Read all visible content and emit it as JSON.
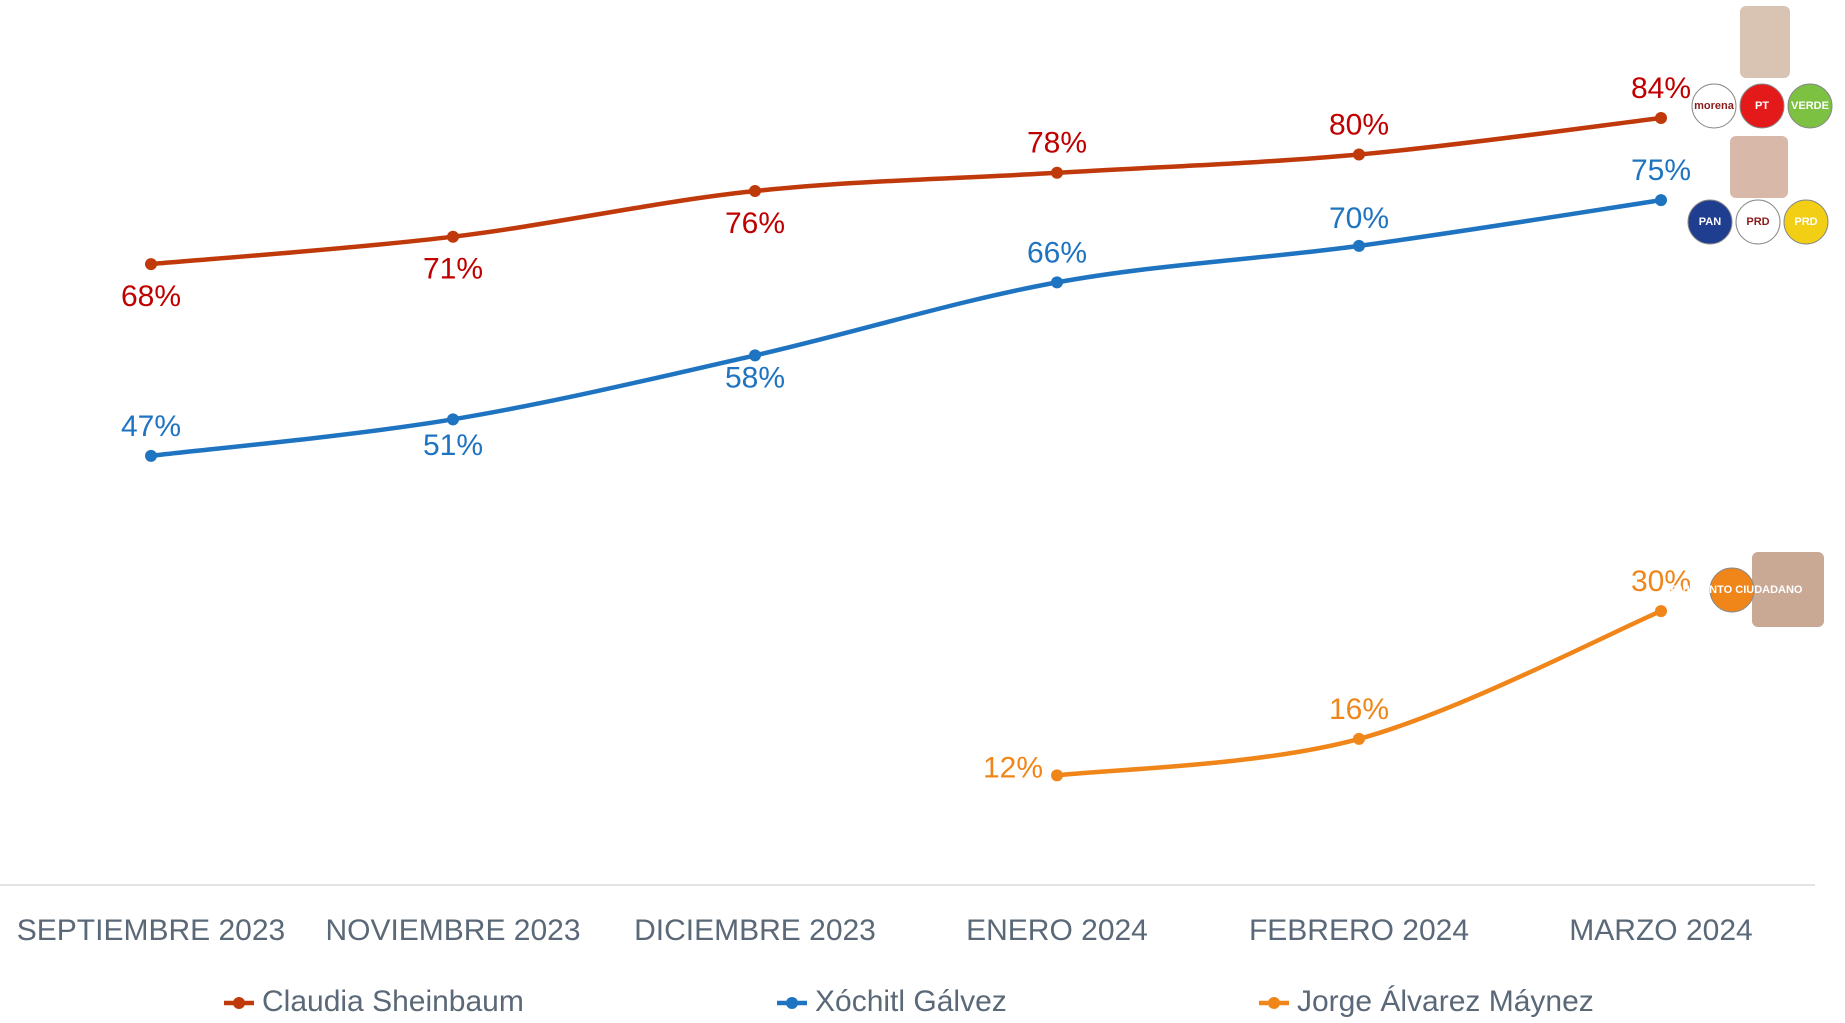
{
  "chart_data": {
    "type": "line",
    "categories": [
      "SEPTIEMBRE 2023",
      "NOVIEMBRE 2023",
      "DICIEMBRE 2023",
      "ENERO 2024",
      "FEBRERO 2024",
      "MARZO 2024"
    ],
    "series": [
      {
        "name": "Claudia Sheinbaum",
        "color": "#c0390b",
        "values": [
          68,
          71,
          76,
          78,
          80,
          84
        ],
        "value_labels": [
          "68%",
          "71%",
          "76%",
          "78%",
          "80%",
          "84%"
        ],
        "logos": [
          "morena",
          "PT",
          "VERDE"
        ]
      },
      {
        "name": "Xóchitl Gálvez",
        "color": "#1f74c1",
        "values": [
          47,
          51,
          58,
          66,
          70,
          75
        ],
        "value_labels": [
          "47%",
          "51%",
          "58%",
          "66%",
          "70%",
          "75%"
        ],
        "logos": [
          "PAN",
          "PRD",
          "PRD"
        ]
      },
      {
        "name": "Jorge Álvarez Máynez",
        "color": "#f0861a",
        "values": [
          null,
          null,
          null,
          12,
          16,
          30
        ],
        "value_labels": [
          null,
          null,
          null,
          "12%",
          "16%",
          "30%"
        ],
        "logos": [
          "MOVIMIENTO CIUDADANO"
        ]
      }
    ],
    "legend": "bottom"
  }
}
